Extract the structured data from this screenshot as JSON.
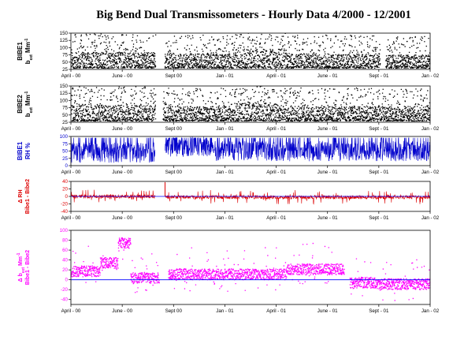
{
  "figure": {
    "title": "Big Bend Dual Transmissometers - Hourly Data 4/2000 - 12/2001"
  },
  "chart_data": [
    {
      "id": "bibe1_bext",
      "type": "scatter",
      "ylabel_line1": "BIBE1",
      "ylabel_line2": "b",
      "ylabel_sub": "ext",
      "ylabel_tail": " Mm",
      "ylabel_sup": "-1",
      "color": "#000000",
      "ylim": [
        25,
        150
      ],
      "yticks": [
        25,
        50,
        75,
        100,
        125,
        150
      ],
      "ytick_labels": [
        "25",
        "50",
        "75",
        "100",
        "125",
        "150"
      ],
      "xtick_labels": [
        "April - 00",
        "June - 00",
        "Sept 00",
        "Jan - 01",
        "April - 01",
        "June - 01",
        "Sept - 01",
        "Jan - 02"
      ],
      "approx_series": {
        "gaps": [
          [
            0.235,
            0.26
          ],
          [
            0.86,
            0.875
          ]
        ],
        "segments": [
          [
            0.0,
            0.235,
            60
          ],
          [
            0.26,
            0.45,
            55
          ],
          [
            0.45,
            0.6,
            70
          ],
          [
            0.6,
            0.86,
            55
          ],
          [
            0.875,
            1.0,
            50
          ]
        ]
      }
    },
    {
      "id": "bibe2_bext",
      "type": "scatter",
      "ylabel_line1": "BIBE2",
      "ylabel_line2": "b",
      "ylabel_sub": "ext",
      "ylabel_tail": " Mm",
      "ylabel_sup": "-1",
      "color": "#000000",
      "ylim": [
        25,
        150
      ],
      "yticks": [
        25,
        50,
        75,
        100,
        125,
        150
      ],
      "ytick_labels": [
        "25",
        "50",
        "75",
        "100",
        "125",
        "150"
      ],
      "xtick_labels": [
        "April - 00",
        "June - 00",
        "Sept 00",
        "Jan - 01",
        "April - 01",
        "June - 01",
        "Sept - 01",
        "Jan - 02"
      ],
      "approx_series": {
        "gaps": [
          [
            0.235,
            0.255
          ]
        ],
        "segments": [
          [
            0.0,
            0.235,
            60
          ],
          [
            0.255,
            0.45,
            55
          ],
          [
            0.45,
            0.6,
            68
          ],
          [
            0.6,
            1.0,
            55
          ]
        ]
      }
    },
    {
      "id": "bibe1_rh",
      "type": "line",
      "ylabel_line1": "BIBE1",
      "ylabel_line2": "RH %",
      "color": "#0000cc",
      "ylim": [
        0,
        100
      ],
      "yticks": [
        0,
        25,
        50,
        75,
        100
      ],
      "ytick_labels": [
        "0",
        "25",
        "50",
        "75",
        "100"
      ],
      "xtick_labels": [
        "April - 00",
        "June - 00",
        "Sept 00",
        "Jan - 01",
        "April - 01",
        "June - 01",
        "Sept - 01",
        "Jan - 02"
      ],
      "approx_series": {
        "gaps": [
          [
            0.235,
            0.262
          ]
        ],
        "segments": [
          [
            0.0,
            0.235,
            45
          ],
          [
            0.262,
            0.4,
            65
          ],
          [
            0.4,
            1.0,
            50
          ]
        ]
      }
    },
    {
      "id": "delta_rh",
      "type": "line",
      "ylabel_line1": "Δ RH",
      "ylabel_line2": "Bibe1 - Bibe2",
      "color": "#dd0000",
      "ylim": [
        -40,
        40
      ],
      "yticks": [
        -40,
        -20,
        0,
        20,
        40
      ],
      "ytick_labels": [
        "-40",
        "-20",
        "0",
        "20",
        "40"
      ],
      "xtick_labels": [
        "April - 00",
        "June - 00",
        "Sept 00",
        "Jan - 01",
        "April - 01",
        "June - 01",
        "Sept - 01",
        "Jan - 02"
      ],
      "reference_line": 0,
      "approx_series": {
        "gaps": [
          [
            0.235,
            0.262
          ]
        ],
        "segments": [
          [
            0.0,
            0.235,
            0
          ],
          [
            0.262,
            1.0,
            -2
          ]
        ]
      }
    },
    {
      "id": "delta_bext",
      "type": "scatter",
      "ylabel_line1": "Δ b",
      "ylabel_sub": "ext",
      "ylabel_tail": " Mm",
      "ylabel_sup": "-1",
      "ylabel_line2": "Bibe1 - Bibe2",
      "color": "#ff00ff",
      "ylim": [
        -50,
        100
      ],
      "yticks": [
        -40,
        -20,
        0,
        20,
        40,
        60,
        80,
        100
      ],
      "ytick_labels": [
        "-40",
        "-20",
        "0",
        "20",
        "40",
        "60",
        "80",
        "100"
      ],
      "xtick_labels": [
        "April - 00",
        "June - 00",
        "Sept 00",
        "Jan - 01",
        "April - 01",
        "June - 01",
        "Sept - 01",
        "Jan - 02"
      ],
      "reference_line": 0,
      "approx_series": {
        "gaps": [
          [
            0.245,
            0.27
          ],
          [
            0.76,
            0.775
          ]
        ],
        "segments": [
          [
            0.0,
            0.08,
            18
          ],
          [
            0.08,
            0.13,
            35
          ],
          [
            0.13,
            0.165,
            75
          ],
          [
            0.165,
            0.245,
            5
          ],
          [
            0.27,
            0.6,
            12
          ],
          [
            0.6,
            0.76,
            22
          ],
          [
            0.775,
            0.85,
            -5
          ],
          [
            0.85,
            1.0,
            -8
          ]
        ]
      }
    }
  ]
}
